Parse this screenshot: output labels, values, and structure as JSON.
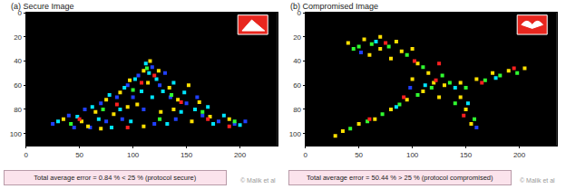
{
  "chart_data": [
    {
      "type": "scatter",
      "title": "(a) Secure Image",
      "marker": "square",
      "grid": false,
      "xlim": [
        0,
        235
      ],
      "xticks": [
        0,
        50,
        100,
        150,
        200
      ],
      "ylim": [
        110,
        0
      ],
      "yticks": [
        0,
        20,
        40,
        60,
        80,
        100
      ],
      "annotation": "Total average error = 0.84 % < 25 % (protocol secure)",
      "source": "© Malik et al",
      "series": [
        {
          "color": "#2040ff",
          "x": [
            25,
            40,
            55,
            70,
            85,
            95,
            105,
            118,
            125,
            135,
            150,
            165,
            180,
            195,
            60,
            90,
            110,
            140,
            75,
            100,
            130,
            160,
            205,
            45,
            120
          ],
          "y": [
            92,
            85,
            80,
            75,
            70,
            60,
            52,
            45,
            60,
            70,
            75,
            85,
            90,
            92,
            95,
            88,
            80,
            88,
            90,
            70,
            50,
            70,
            90,
            95,
            92
          ]
        },
        {
          "color": "#00e5ff",
          "x": [
            30,
            48,
            62,
            78,
            92,
            102,
            112,
            115,
            122,
            128,
            138,
            148,
            158,
            170,
            185,
            200,
            68,
            88,
            108,
            118,
            145,
            175,
            98,
            80,
            132
          ],
          "y": [
            90,
            86,
            78,
            68,
            62,
            55,
            42,
            50,
            55,
            65,
            58,
            66,
            80,
            78,
            85,
            93,
            88,
            80,
            65,
            70,
            82,
            92,
            90,
            95,
            92
          ]
        },
        {
          "color": "#ffe000",
          "x": [
            35,
            52,
            65,
            75,
            88,
            97,
            110,
            116,
            124,
            134,
            142,
            152,
            162,
            172,
            190,
            58,
            82,
            104,
            114,
            126,
            138,
            155,
            95,
            70,
            110
          ],
          "y": [
            88,
            90,
            82,
            72,
            66,
            56,
            48,
            40,
            48,
            62,
            72,
            60,
            74,
            86,
            88,
            94,
            84,
            76,
            58,
            82,
            80,
            90,
            78,
            96,
            94
          ]
        },
        {
          "color": "#ff2020",
          "x": [
            50,
            85,
            108,
            120,
            145,
            170,
            95,
            190
          ],
          "y": [
            88,
            76,
            58,
            52,
            74,
            88,
            95,
            94
          ]
        },
        {
          "color": "#30ff30",
          "x": [
            42,
            72,
            100,
            113,
            136,
            165,
            125,
            195
          ],
          "y": [
            92,
            80,
            64,
            46,
            68,
            82,
            88,
            90
          ]
        }
      ]
    },
    {
      "type": "scatter",
      "title": "(b) Compromised Image",
      "marker": "square",
      "grid": false,
      "xlim": [
        0,
        235
      ],
      "xticks": [
        0,
        50,
        100,
        150,
        200
      ],
      "ylim": [
        110,
        0
      ],
      "yticks": [
        0,
        20,
        40,
        60,
        80,
        100
      ],
      "annotation": "Total average error = 50.44 % > 25 % (protocol compromised)",
      "source": "© Malik et al",
      "series": [
        {
          "color": "#ffe000",
          "x": [
            40,
            55,
            70,
            85,
            100,
            60,
            80,
            105,
            115,
            120,
            110,
            95,
            80,
            65,
            50,
            35,
            28,
            130,
            145,
            160,
            175,
            190,
            205,
            145,
            150,
            155,
            125,
            90,
            70,
            100
          ],
          "y": [
            25,
            22,
            20,
            24,
            30,
            35,
            38,
            42,
            50,
            58,
            65,
            72,
            80,
            88,
            92,
            98,
            102,
            60,
            58,
            55,
            50,
            48,
            46,
            70,
            80,
            92,
            70,
            32,
            30,
            55
          ]
        },
        {
          "color": "#30ff30",
          "x": [
            45,
            62,
            78,
            95,
            110,
            118,
            105,
            88,
            72,
            58,
            42,
            135,
            150,
            168,
            182,
            198,
            140,
            158,
            128,
            50
          ],
          "y": [
            30,
            26,
            28,
            35,
            45,
            62,
            68,
            76,
            84,
            90,
            96,
            58,
            62,
            56,
            52,
            50,
            75,
            88,
            52,
            28
          ]
        },
        {
          "color": "#ff2020",
          "x": [
            75,
            102,
            122,
            92,
            60,
            165,
            148,
            125,
            195
          ],
          "y": [
            25,
            40,
            56,
            70,
            88,
            58,
            85,
            42,
            46
          ]
        },
        {
          "color": "#00e5ff",
          "x": [
            66,
            112,
            85,
            140,
            178,
            152
          ],
          "y": [
            24,
            60,
            78,
            62,
            54,
            75
          ]
        },
        {
          "color": "#2040ff",
          "x": [
            52,
            98,
            160
          ],
          "y": [
            33,
            62,
            95
          ]
        }
      ]
    }
  ]
}
